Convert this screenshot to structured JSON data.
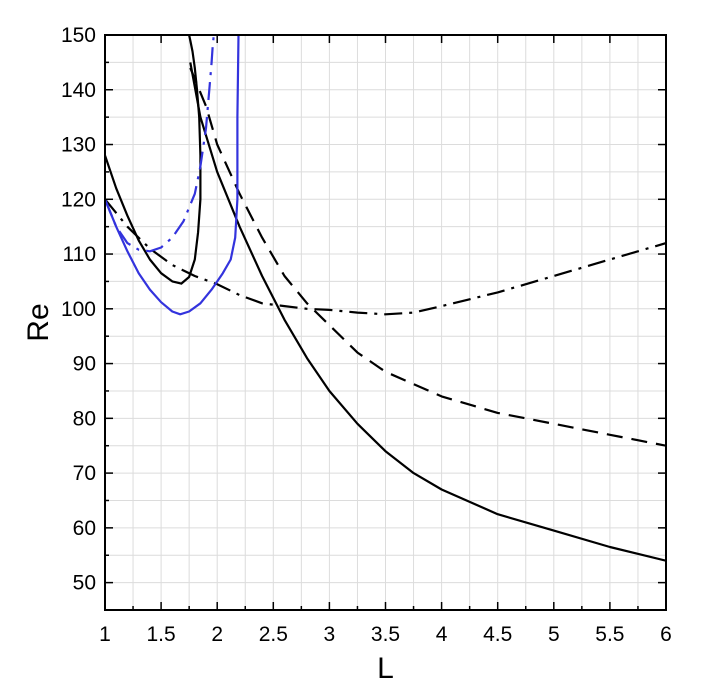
{
  "chart_data": {
    "type": "line",
    "title": "",
    "xlabel": "L",
    "ylabel": "Re",
    "xlim": [
      1,
      6
    ],
    "ylim": [
      45,
      150
    ],
    "xticks": [
      "1",
      "1.5",
      "2",
      "2.5",
      "3",
      "3.5",
      "4",
      "4.5",
      "5",
      "5.5",
      "6"
    ],
    "yticks": [
      "50",
      "60",
      "70",
      "80",
      "90",
      "100",
      "110",
      "120",
      "130",
      "140",
      "150"
    ],
    "grid": true,
    "legend": "none",
    "colors": {
      "black": "#000000",
      "blue": "#3333dd",
      "grid": "#dcdcdc"
    },
    "series": [
      {
        "color": "#000000",
        "dash": "solid",
        "x": [
          1.0,
          1.1,
          1.2,
          1.3,
          1.4,
          1.5,
          1.6,
          1.68,
          1.75,
          1.8,
          1.83,
          1.85,
          1.85,
          1.84,
          1.82,
          1.8,
          1.78,
          1.76,
          1.75
        ],
        "y": [
          128,
          122,
          117,
          112.5,
          109,
          106.5,
          105,
          104.6,
          105.8,
          109,
          114,
          120,
          128,
          135,
          140,
          144,
          147,
          149,
          150
        ]
      },
      {
        "color": "#000000",
        "dash": "solid",
        "x": [
          1.76,
          1.85,
          2.0,
          2.2,
          2.4,
          2.6,
          2.8,
          3.0,
          3.25,
          3.5,
          3.75,
          4.0,
          4.5,
          5.0,
          5.5,
          6.0
        ],
        "y": [
          145,
          135,
          125,
          115,
          106,
          98,
          91,
          85,
          79,
          74,
          70,
          67,
          62.5,
          59.5,
          56.5,
          54
        ]
      },
      {
        "color": "#000000",
        "dash": "dash",
        "x": [
          1.76,
          1.9,
          2.0,
          2.2,
          2.4,
          2.6,
          2.8,
          3.0,
          3.25,
          3.5,
          4.0,
          4.5,
          5.0,
          5.5,
          6.0
        ],
        "y": [
          144,
          137,
          130,
          121,
          113,
          106,
          101,
          97,
          92,
          88.5,
          84,
          81,
          79,
          77,
          75
        ]
      },
      {
        "color": "#000000",
        "dash": "dashdot",
        "x": [
          1.0,
          1.2,
          1.4,
          1.6,
          1.8,
          2.0,
          2.2,
          2.4,
          2.6,
          2.8,
          3.0,
          3.25,
          3.5,
          3.75,
          4.0,
          4.5,
          5.0,
          5.5,
          6.0
        ],
        "y": [
          120,
          115,
          111,
          108,
          106,
          104.5,
          102.5,
          101,
          100.5,
          100,
          99.8,
          99.3,
          99,
          99.3,
          100.5,
          103,
          106,
          109,
          112
        ]
      },
      {
        "color": "#3333dd",
        "dash": "solid",
        "x": [
          1.0,
          1.1,
          1.2,
          1.3,
          1.4,
          1.5,
          1.6,
          1.67,
          1.75,
          1.85,
          1.95,
          2.05,
          2.12,
          2.16,
          2.18,
          2.18,
          2.19
        ],
        "y": [
          120,
          115,
          110.5,
          106.5,
          103.5,
          101.2,
          99.5,
          99,
          99.5,
          101,
          103.5,
          106.5,
          109,
          113,
          120,
          135,
          150
        ]
      },
      {
        "color": "#3333dd",
        "dash": "dashdot",
        "x": [
          1.0,
          1.1,
          1.2,
          1.3,
          1.4,
          1.5,
          1.6,
          1.7,
          1.8,
          1.85,
          1.9,
          1.93,
          1.95,
          1.96,
          1.97
        ],
        "y": [
          120,
          115,
          112,
          110.8,
          110.5,
          111.2,
          113,
          116,
          121,
          126,
          133,
          140,
          145,
          148,
          150
        ]
      }
    ]
  }
}
